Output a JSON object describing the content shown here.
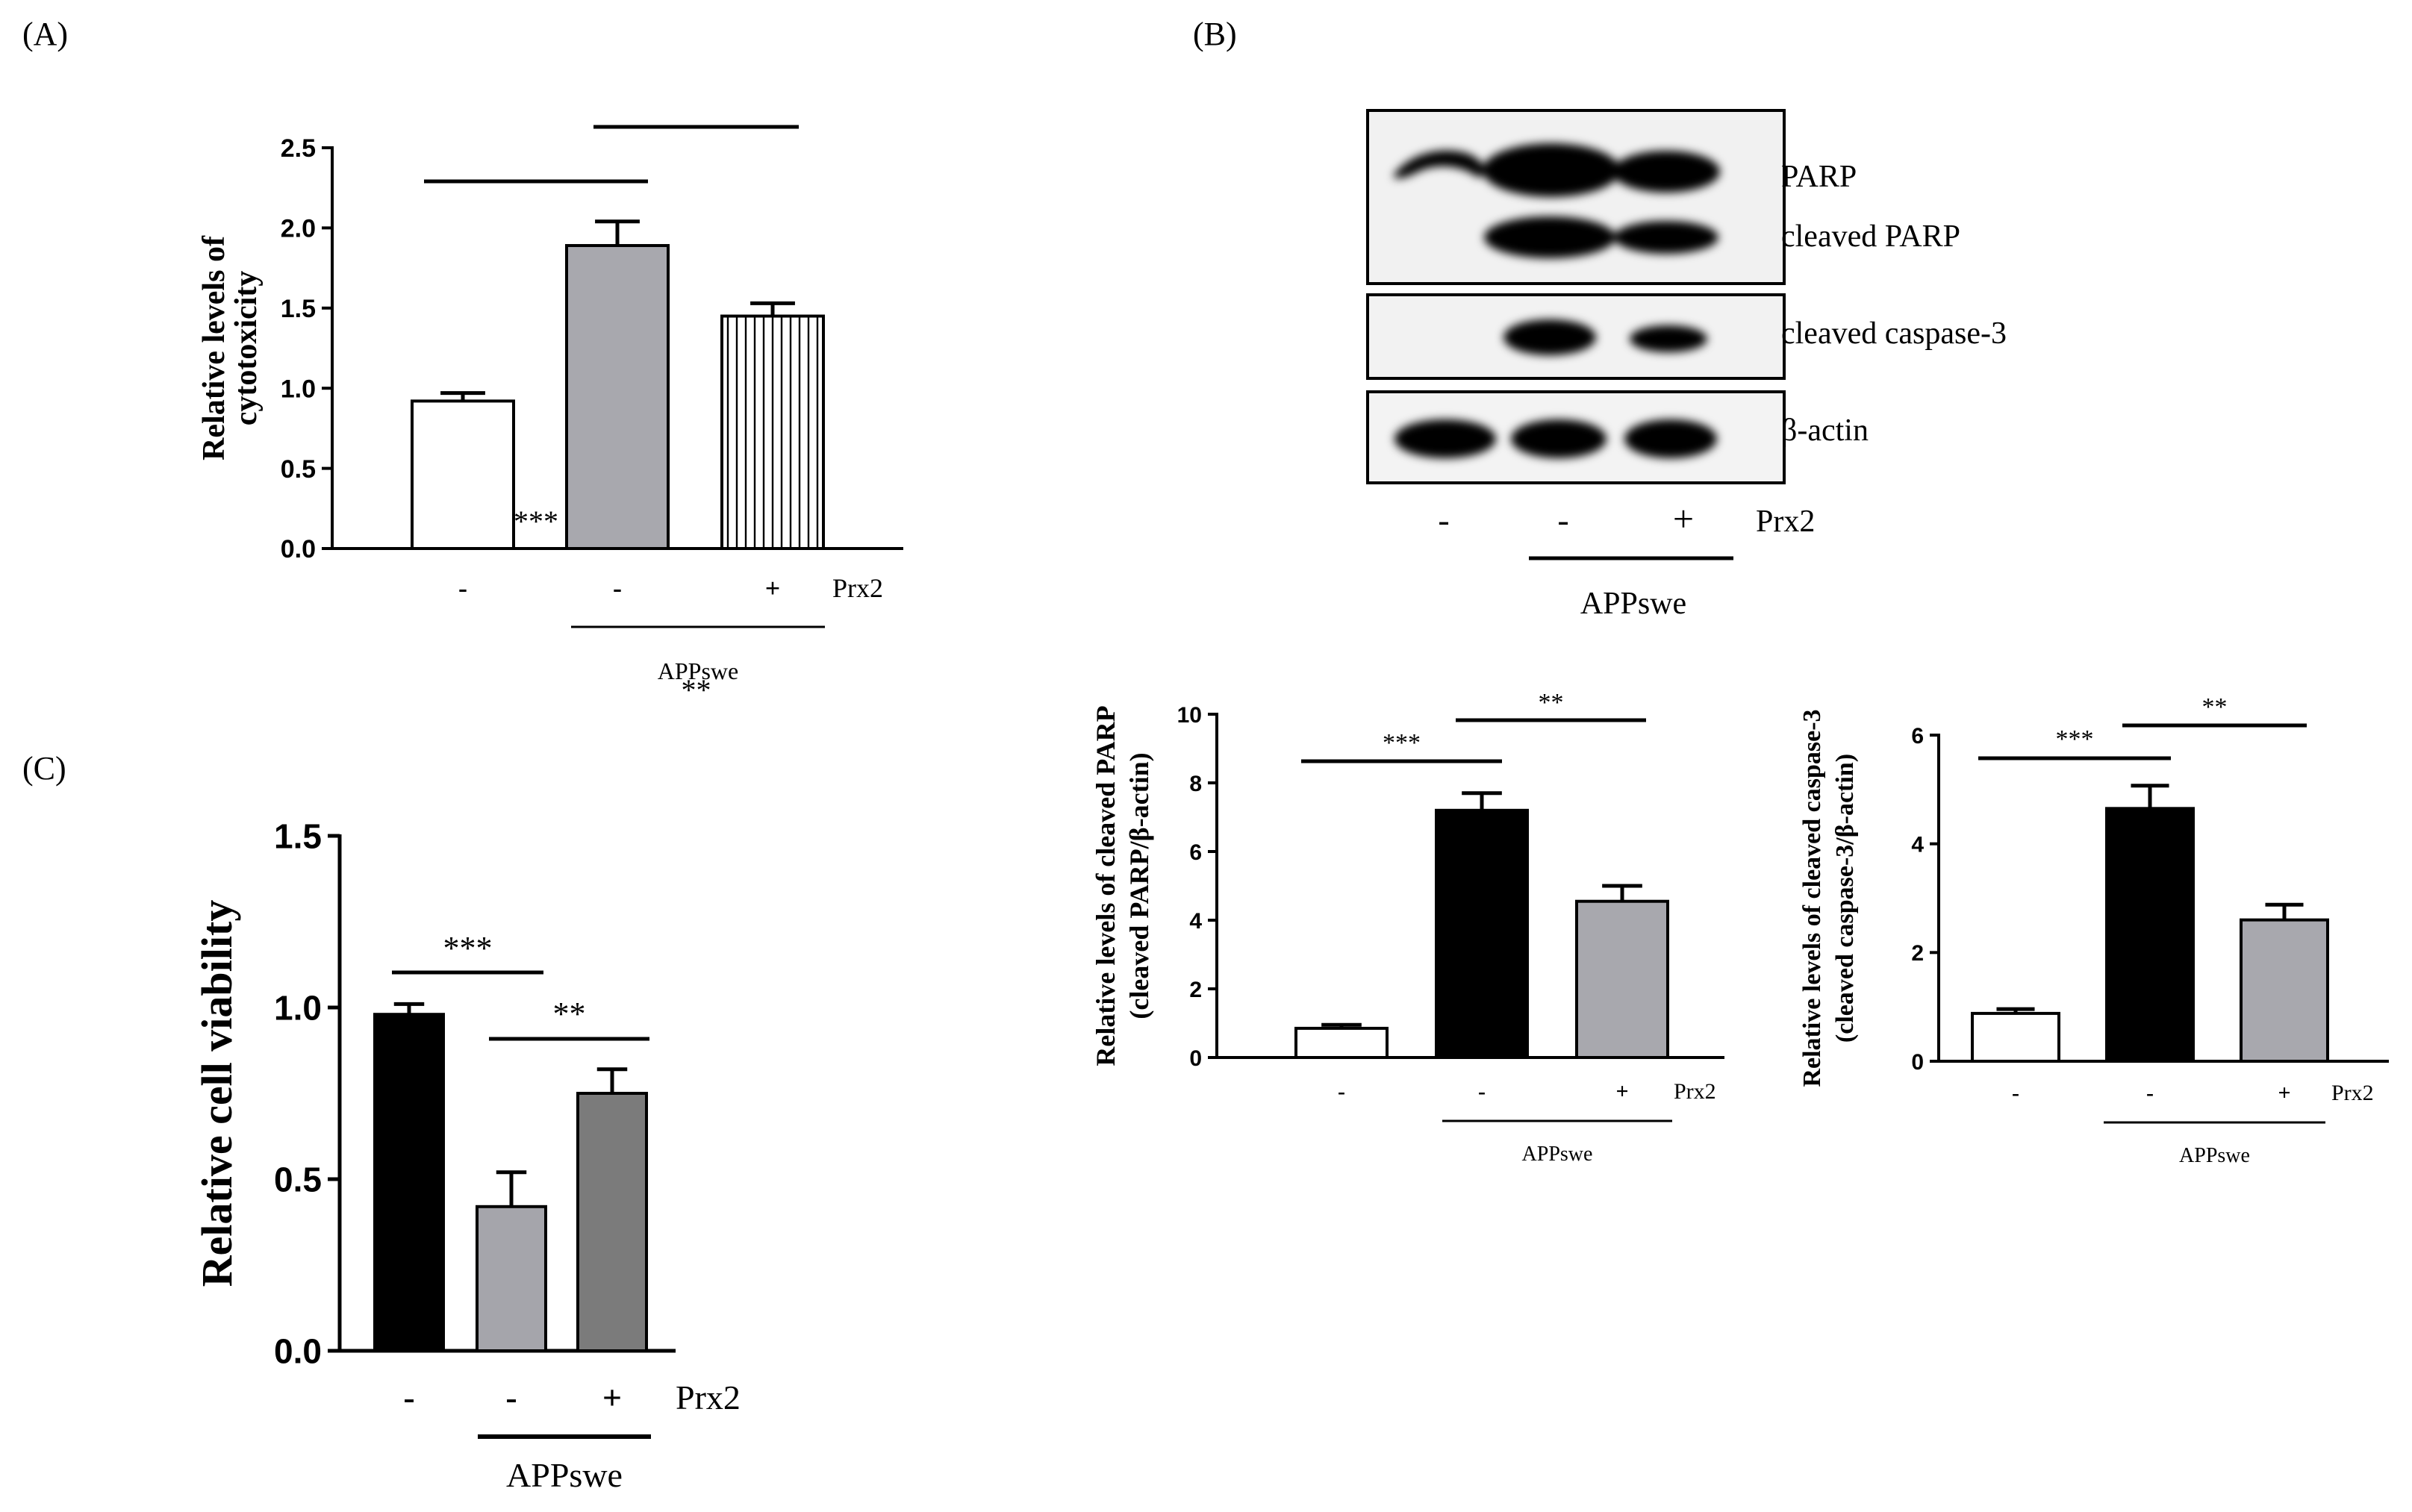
{
  "panels": {
    "a": {
      "letter": "(A)"
    },
    "b": {
      "letter": "(B)"
    },
    "c": {
      "letter": "(C)"
    }
  },
  "blot": {
    "proteins": [
      "PARP",
      "cleaved PARP",
      "cleaved caspase-3",
      "β-actin"
    ],
    "prx2_marks": [
      "-",
      "-",
      "+"
    ],
    "treatment_label": "Prx2",
    "group_label": "APPswe"
  },
  "chart_data": [
    {
      "id": "a",
      "type": "bar",
      "title": "",
      "ylabel_lines": [
        "Relative levels of",
        "cytotoxicity"
      ],
      "categories": [
        "-",
        "-",
        "+"
      ],
      "treatment_label": "Prx2",
      "group_label": "APPswe",
      "values": [
        0.92,
        1.89,
        1.45
      ],
      "errors": [
        0.05,
        0.15,
        0.08
      ],
      "bar_styles": [
        "white",
        "gray",
        "striped"
      ],
      "ylim": [
        0,
        2.5
      ],
      "yticks": [
        "0.0",
        "0.5",
        "1.0",
        "1.5",
        "2.0",
        "2.5"
      ],
      "significance": [
        {
          "from": 0,
          "to": 1,
          "label": "***"
        },
        {
          "from": 1,
          "to": 2,
          "label": "**"
        }
      ]
    },
    {
      "id": "b1",
      "type": "bar",
      "title": "",
      "ylabel_lines": [
        "Relative levels of cleaved PARP",
        "(cleaved PARP/β-actin)"
      ],
      "categories": [
        "-",
        "-",
        "+"
      ],
      "treatment_label": "Prx2",
      "group_label": "APPswe",
      "values": [
        0.85,
        7.2,
        4.55
      ],
      "errors": [
        0.1,
        0.5,
        0.45
      ],
      "bar_styles": [
        "white",
        "black",
        "gray"
      ],
      "ylim": [
        0,
        10
      ],
      "yticks": [
        "0",
        "2",
        "4",
        "6",
        "8",
        "10"
      ],
      "significance": [
        {
          "from": 0,
          "to": 1,
          "label": "***"
        },
        {
          "from": 1,
          "to": 2,
          "label": "**"
        }
      ]
    },
    {
      "id": "b2",
      "type": "bar",
      "title": "",
      "ylabel_lines": [
        "Relative levels of cleaved caspase-3",
        "(cleaved caspase-3/β-actin)"
      ],
      "categories": [
        "-",
        "-",
        "+"
      ],
      "treatment_label": "Prx2",
      "group_label": "APPswe",
      "values": [
        0.88,
        4.65,
        2.6
      ],
      "errors": [
        0.08,
        0.42,
        0.28
      ],
      "bar_styles": [
        "white",
        "black",
        "gray"
      ],
      "ylim": [
        0,
        6
      ],
      "yticks": [
        "0",
        "2",
        "4",
        "6"
      ],
      "significance": [
        {
          "from": 0,
          "to": 1,
          "label": "***"
        },
        {
          "from": 1,
          "to": 2,
          "label": "**"
        }
      ]
    },
    {
      "id": "c",
      "type": "bar",
      "title": "",
      "ylabel_lines": [
        "Relative cell viability"
      ],
      "categories": [
        "-",
        "-",
        "+"
      ],
      "treatment_label": "Prx2",
      "group_label": "APPswe",
      "values": [
        0.98,
        0.42,
        0.75
      ],
      "errors": [
        0.03,
        0.1,
        0.07
      ],
      "bar_styles": [
        "black",
        "lightgray",
        "darkgray"
      ],
      "ylim": [
        0,
        1.5
      ],
      "yticks": [
        "0.0",
        "0.5",
        "1.0",
        "1.5"
      ],
      "significance": [
        {
          "from": 0,
          "to": 1,
          "label": "***"
        },
        {
          "from": 1,
          "to": 2,
          "label": "**"
        }
      ]
    }
  ],
  "colors": {
    "white": "#ffffff",
    "gray": "#a8a8ae",
    "black": "#000000",
    "lightgray": "#a5a5ab",
    "darkgray": "#7b7b7b",
    "ink": "#000000",
    "membrane": "#f2f2f2"
  }
}
